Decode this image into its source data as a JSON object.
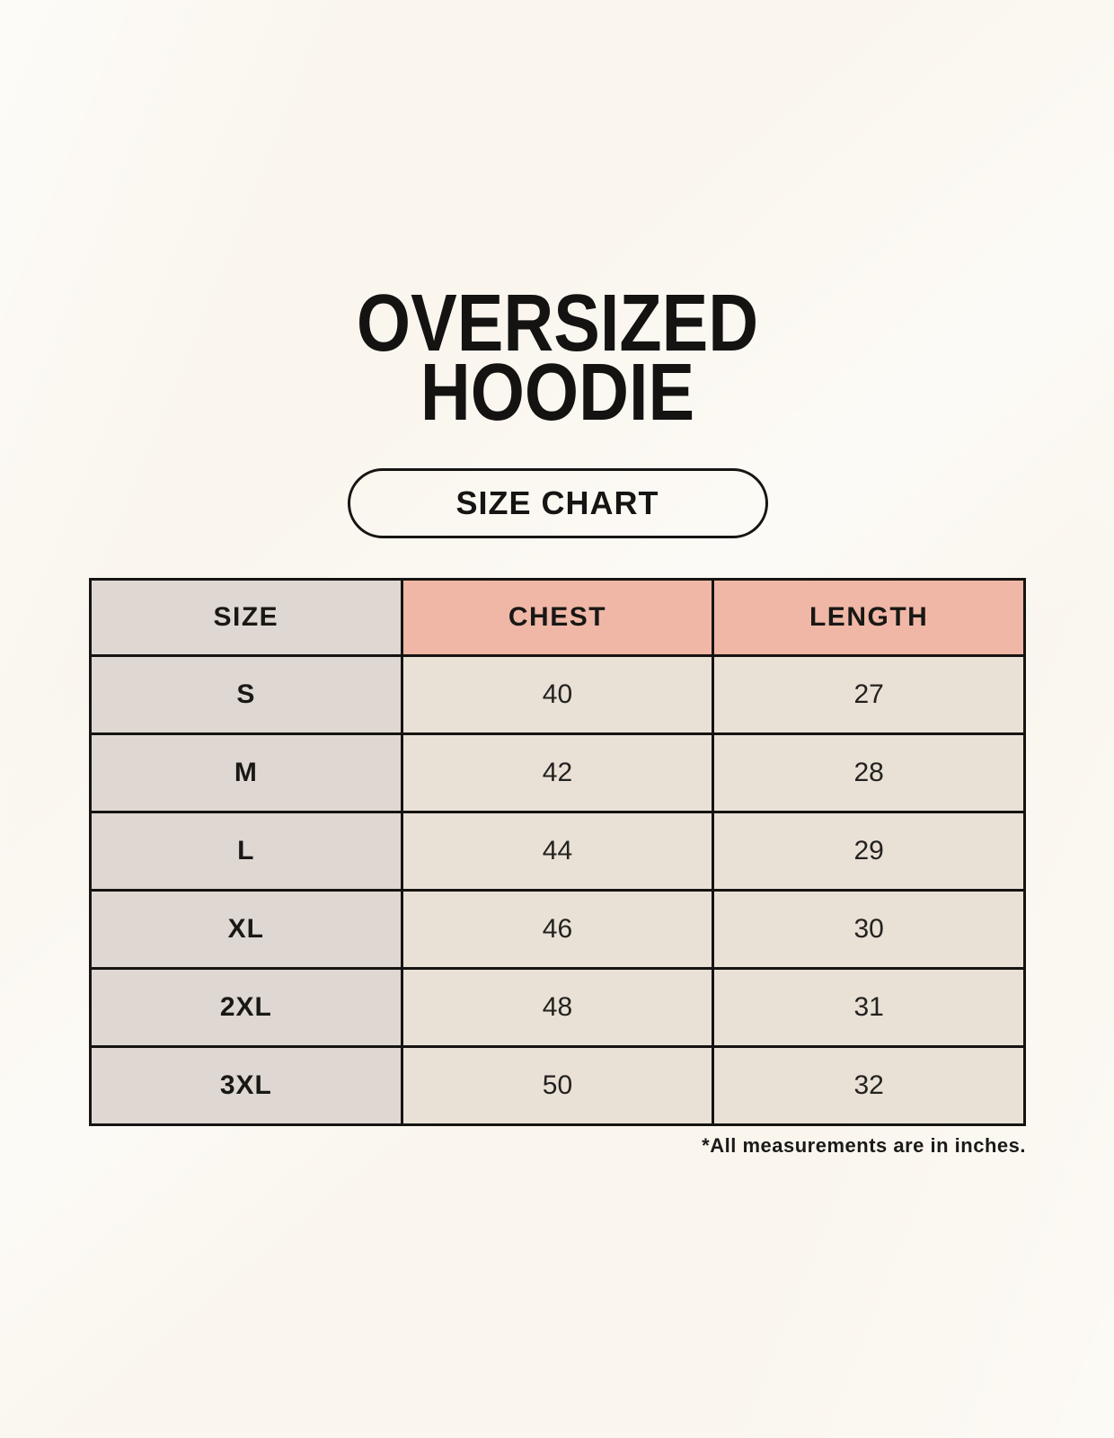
{
  "chart_data": {
    "type": "table",
    "title": "OVERSIZED HOODIE",
    "subtitle": "SIZE CHART",
    "columns": [
      "SIZE",
      "CHEST",
      "LENGTH"
    ],
    "rows": [
      [
        "S",
        40,
        27
      ],
      [
        "M",
        42,
        28
      ],
      [
        "L",
        44,
        29
      ],
      [
        "XL",
        46,
        30
      ],
      [
        "2XL",
        48,
        31
      ],
      [
        "3XL",
        50,
        32
      ]
    ],
    "note": "*All measurements are in inches.",
    "units": "inches",
    "layout_hints": {
      "header_row_accent_columns": [
        "CHEST",
        "LENGTH"
      ],
      "size_column_shaded": true,
      "grid": true
    }
  },
  "header": {
    "title_line1": "OVERSIZED",
    "title_line2": "HOODIE",
    "size_chart_button_label": "SIZE CHART"
  },
  "table": {
    "columns": [
      "SIZE",
      "CHEST",
      "LENGTH"
    ],
    "rows": [
      {
        "size": "S",
        "chest": "40",
        "length": "27"
      },
      {
        "size": "M",
        "chest": "42",
        "length": "28"
      },
      {
        "size": "L",
        "chest": "44",
        "length": "29"
      },
      {
        "size": "XL",
        "chest": "46",
        "length": "30"
      },
      {
        "size": "2XL",
        "chest": "48",
        "length": "31"
      },
      {
        "size": "3XL",
        "chest": "50",
        "length": "32"
      }
    ]
  },
  "footnote": "*All measurements are in inches.",
  "colors": {
    "page_background": "#faf6ee",
    "size_column_background": "#ded7d2",
    "header_accent_background": "#f0b7a7",
    "data_cell_background": "#e9e1d6",
    "border": "#151412",
    "text": "#161513"
  }
}
